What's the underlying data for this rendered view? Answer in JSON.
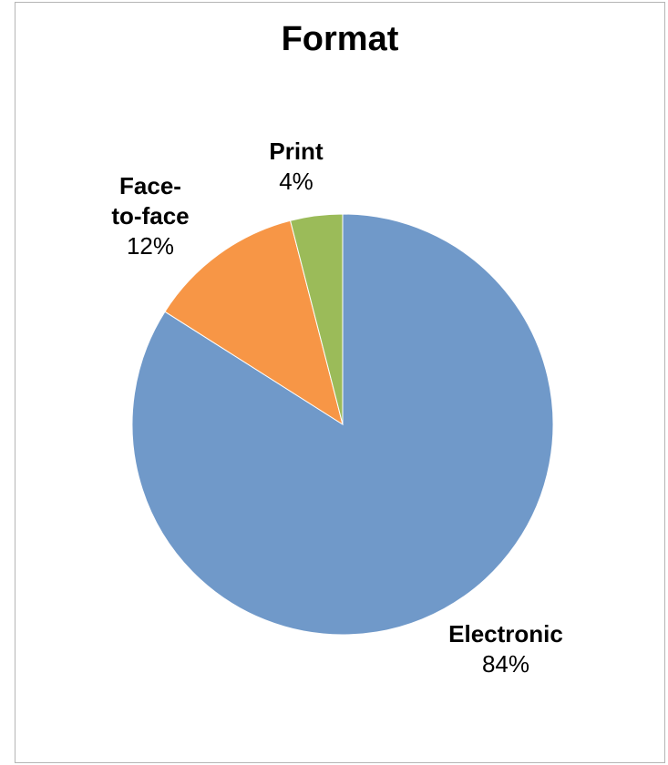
{
  "chart_data": {
    "type": "pie",
    "title": "Format",
    "slices": [
      {
        "label": "Electronic",
        "value": 84,
        "value_label": "84%",
        "color": "#7099c9"
      },
      {
        "label": "Face-to-face",
        "display_lines": [
          "Face-",
          "to-face"
        ],
        "value": 12,
        "value_label": "12%",
        "color": "#f79646"
      },
      {
        "label": "Print",
        "value": 4,
        "value_label": "4%",
        "color": "#9bbb59"
      }
    ],
    "legend": "none",
    "start_angle": "12 o'clock",
    "direction": "clockwise"
  }
}
